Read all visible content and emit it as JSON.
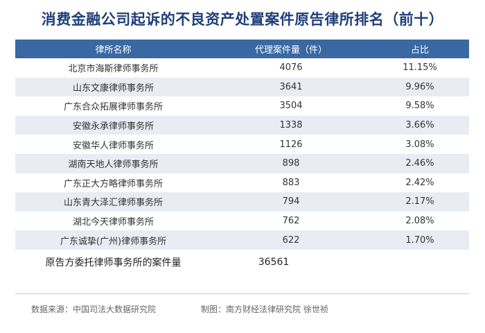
{
  "title": "消费金融公司起诉的不良资产处置案件原告律所排名（前十）",
  "chart_data": {
    "type": "table",
    "columns": [
      "律所名称",
      "代理案件量（件）",
      "占比"
    ],
    "rows": [
      {
        "name": "北京市海斯律师事务所",
        "count": "4076",
        "share": "11.15%"
      },
      {
        "name": "山东文康律师事务所",
        "count": "3641",
        "share": "9.96%"
      },
      {
        "name": "广东合众拓展律师事务所",
        "count": "3504",
        "share": "9.58%"
      },
      {
        "name": "安徽永承律师事务所",
        "count": "1338",
        "share": "3.66%"
      },
      {
        "name": "安徽华人律师事务所",
        "count": "1126",
        "share": "3.08%"
      },
      {
        "name": "湖南天地人律师事务所",
        "count": "898",
        "share": "2.46%"
      },
      {
        "name": "广东正大方略律师事务所",
        "count": "883",
        "share": "2.42%"
      },
      {
        "name": "山东青大泽汇律师事务所",
        "count": "794",
        "share": "2.17%"
      },
      {
        "name": "湖北今天律师事务所",
        "count": "762",
        "share": "2.08%"
      },
      {
        "name": "广东诚挚(广州)律师事务所",
        "count": "622",
        "share": "1.70%"
      }
    ],
    "total_label": "原告方委托律师事务所的案件量",
    "total_value": "36561"
  },
  "footer": {
    "source": "数据来源：中国司法大数据研究院",
    "credit": "制图：南方财经法律研究院  徐世祯"
  },
  "colors": {
    "title": "#1f3f7a",
    "header_bg": "#3a68a3",
    "stripe_bg": "#e9ecf2"
  }
}
